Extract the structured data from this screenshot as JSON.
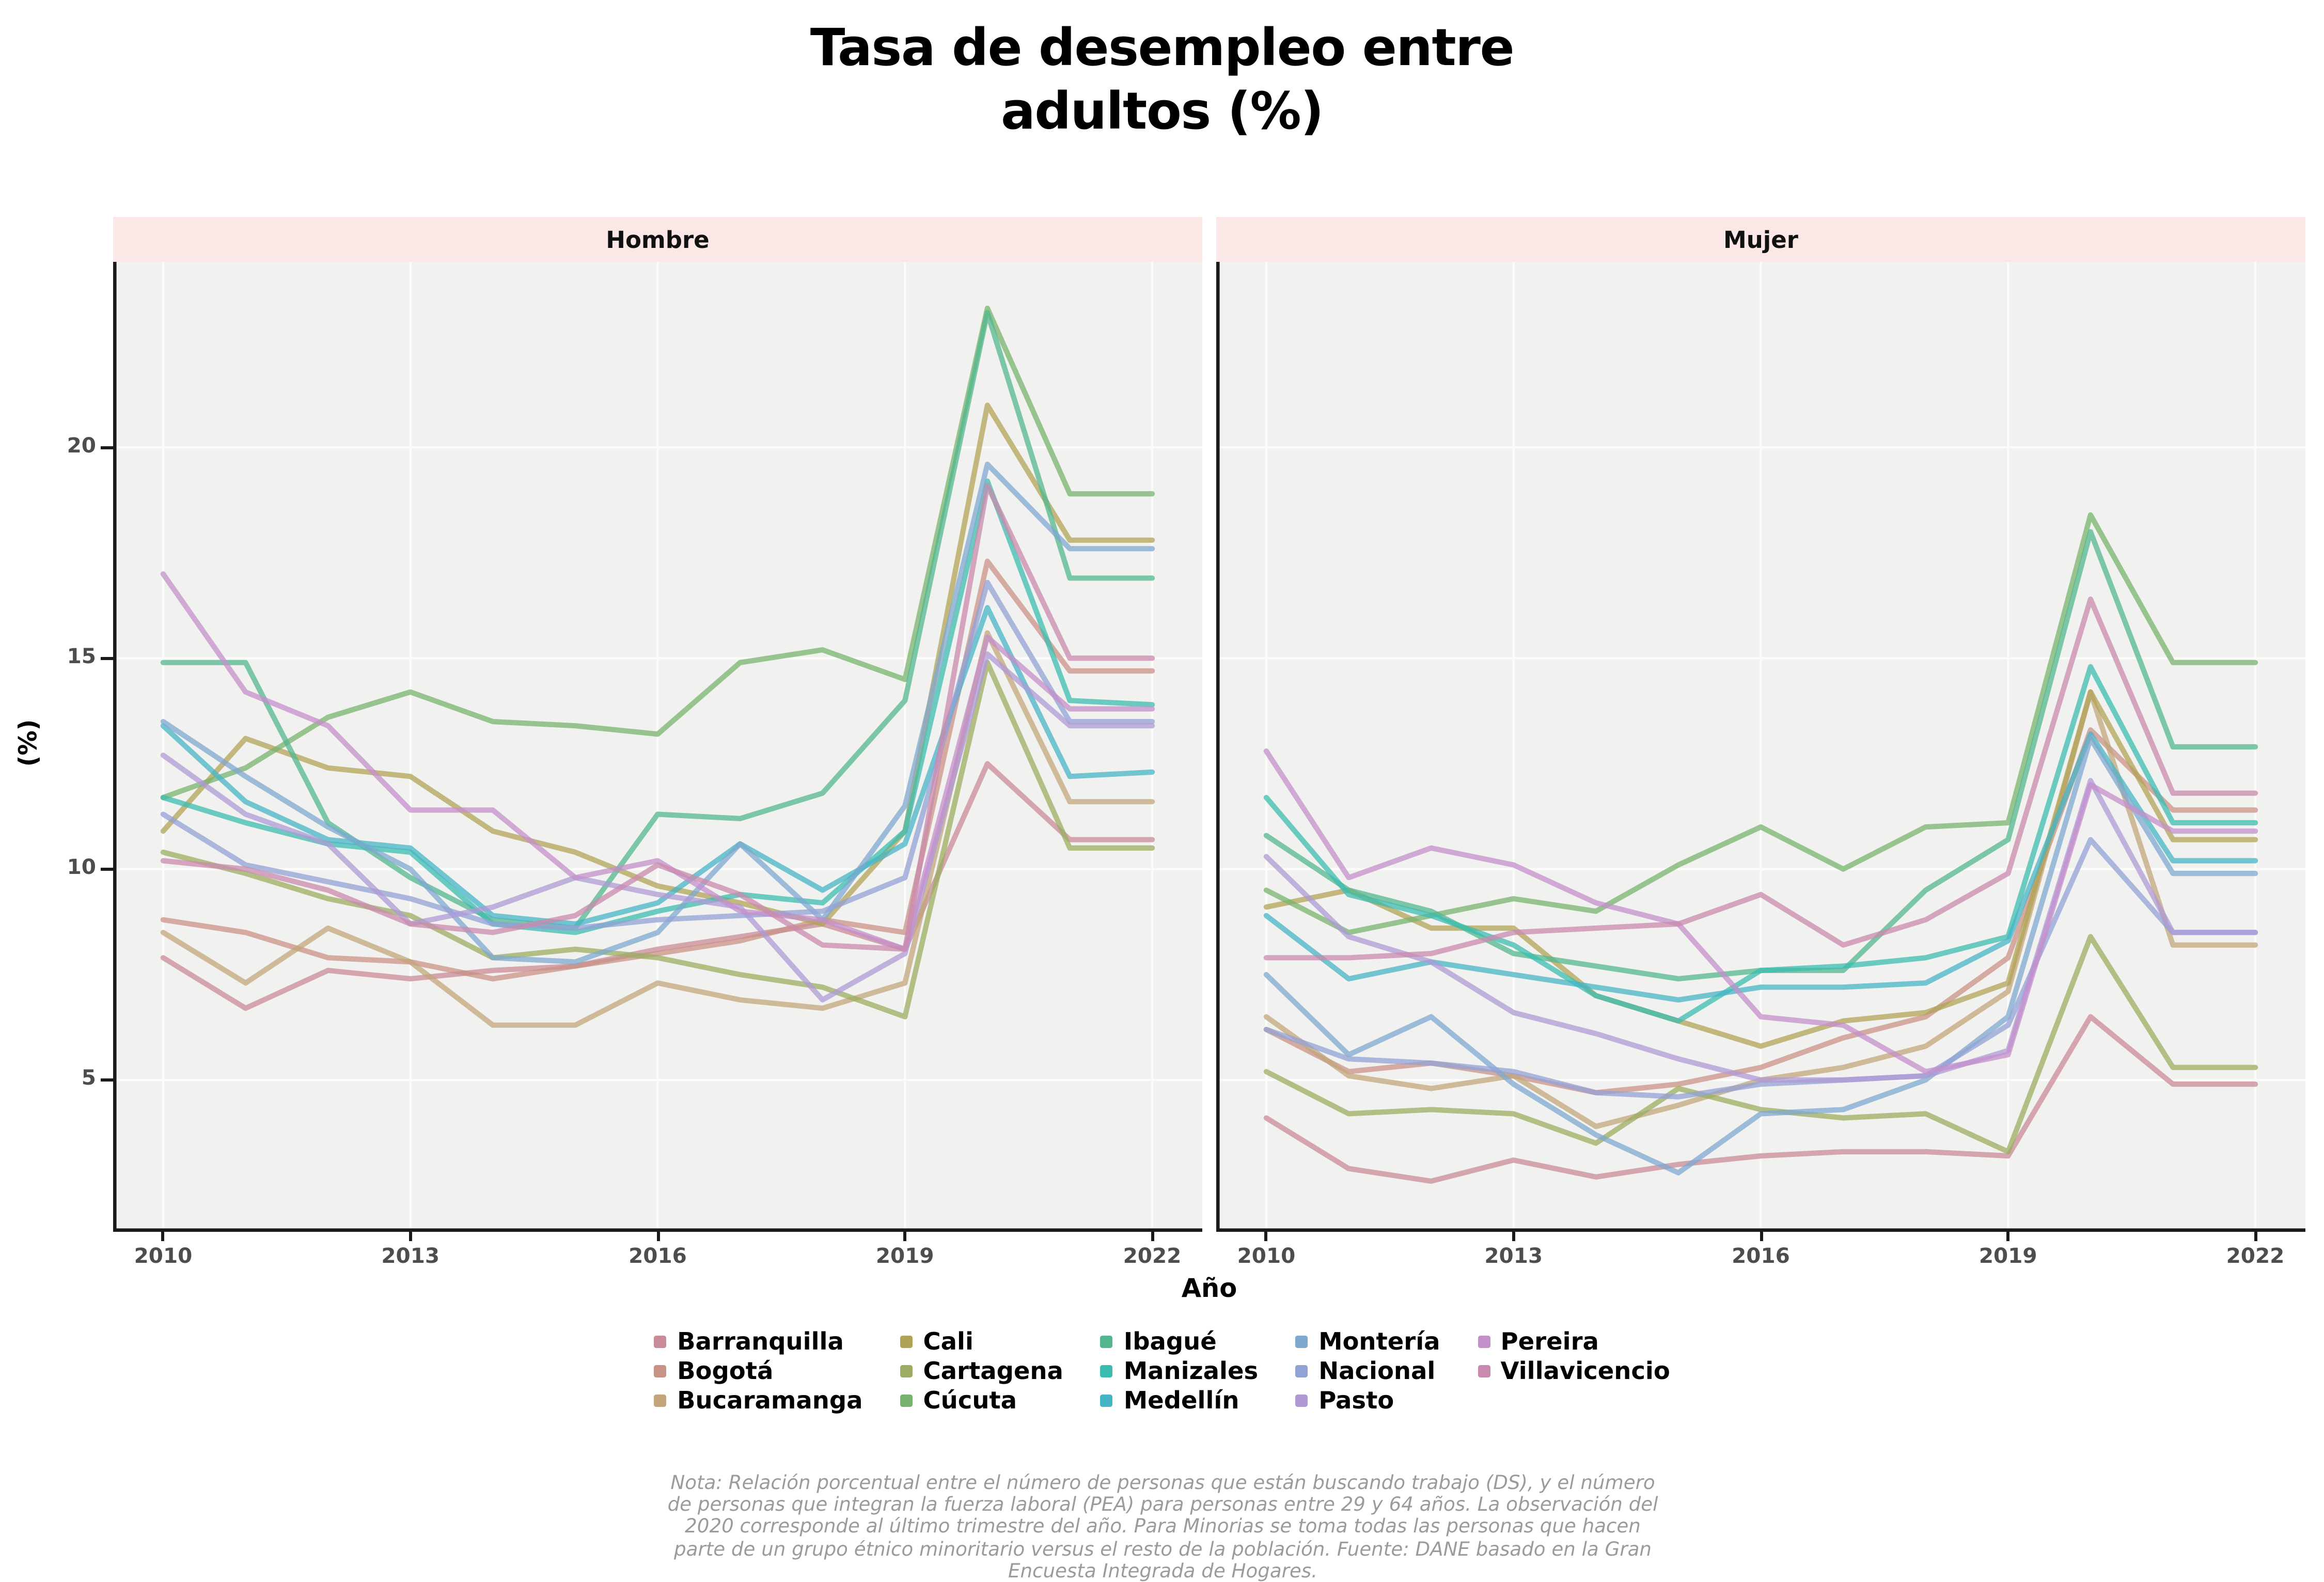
{
  "title": {
    "line1": "Tasa de desempleo entre",
    "line2": "adultos (%)"
  },
  "note": {
    "text": "Nota: Relación porcentual entre el número de personas que están buscando trabajo (DS), y el número de personas que integran la fuerza laboral (PEA) para personas entre 29 y 64 años. La observación del 2020 corresponde al último trimestre del año. Para Minorias se toma todas las personas que hacen parte de un grupo étnico minoritario versus el resto de la población. Fuente: DANE basado en la Gran Encuesta Integrada de Hogares."
  },
  "chart_data": {
    "type": "line",
    "title": "Tasa de desempleo entre adultos (%)",
    "xlabel": "Año",
    "ylabel": "(%)",
    "x": {
      "label": "Año",
      "years": [
        2010,
        2011,
        2012,
        2013,
        2014,
        2015,
        2016,
        2017,
        2018,
        2019,
        2020,
        2021,
        2022
      ],
      "ticks": [
        2010,
        2013,
        2016,
        2019,
        2022
      ]
    },
    "y": {
      "label": "(%)",
      "ticks": [
        5,
        10,
        15,
        20
      ],
      "range": [
        1.4,
        24.4
      ],
      "grid": "major-only"
    },
    "legend": {
      "position": "bottom",
      "columns": [
        [
          "Barranquilla",
          "Bogotá",
          "Bucaramanga"
        ],
        [
          "Cali",
          "Cartagena",
          "Cúcuta"
        ],
        [
          "Ibagué",
          "Manizales",
          "Medellín"
        ],
        [
          "Montería",
          "Nacional",
          "Pasto"
        ],
        [
          "Pereira",
          "Villavicencio"
        ]
      ]
    },
    "palette": {
      "Barranquilla": "#c98b97",
      "Bogotá": "#c99287",
      "Bucaramanga": "#c2a57b",
      "Cali": "#b1a356",
      "Cartagena": "#9bad62",
      "Cúcuta": "#77b36e",
      "Ibagué": "#52b78f",
      "Manizales": "#3cbcb0",
      "Medellín": "#46b4c6",
      "Montería": "#7fa8d0",
      "Nacional": "#93a2d5",
      "Pasto": "#af9ad6",
      "Pereira": "#c48fcb",
      "Villavicencio": "#ca89ae"
    },
    "facets": [
      {
        "label": "Hombre",
        "series": [
          {
            "name": "Barranquilla",
            "values": [
              7.9,
              6.7,
              7.6,
              7.4,
              7.6,
              7.7,
              8.1,
              8.4,
              8.7,
              8.1,
              12.5,
              10.7,
              10.7
            ]
          },
          {
            "name": "Bogotá",
            "values": [
              8.8,
              8.5,
              7.9,
              7.8,
              7.4,
              7.7,
              8.0,
              8.3,
              8.8,
              8.5,
              17.3,
              14.7,
              14.7
            ]
          },
          {
            "name": "Bucaramanga",
            "values": [
              8.5,
              7.3,
              8.6,
              7.8,
              6.3,
              6.3,
              7.3,
              6.9,
              6.7,
              7.3,
              15.6,
              11.6,
              11.6
            ]
          },
          {
            "name": "Cali",
            "values": [
              10.9,
              13.1,
              12.4,
              12.2,
              10.9,
              10.4,
              9.6,
              9.2,
              8.7,
              10.9,
              21.0,
              17.8,
              17.8
            ]
          },
          {
            "name": "Cartagena",
            "values": [
              10.4,
              9.9,
              9.3,
              8.9,
              7.9,
              8.1,
              7.9,
              7.5,
              7.2,
              6.5,
              14.9,
              10.5,
              10.5
            ]
          },
          {
            "name": "Cúcuta",
            "values": [
              11.7,
              12.4,
              13.6,
              14.2,
              13.5,
              13.4,
              13.2,
              14.9,
              15.2,
              14.5,
              23.3,
              18.9,
              18.9
            ]
          },
          {
            "name": "Ibagué",
            "values": [
              14.9,
              14.9,
              11.1,
              9.8,
              8.8,
              8.6,
              11.3,
              11.2,
              11.8,
              14.0,
              23.2,
              16.9,
              16.9
            ]
          },
          {
            "name": "Manizales",
            "values": [
              11.7,
              11.1,
              10.6,
              10.4,
              8.7,
              8.5,
              9.0,
              9.4,
              9.2,
              10.9,
              19.2,
              14.0,
              13.9
            ]
          },
          {
            "name": "Medellín",
            "values": [
              13.4,
              11.6,
              10.7,
              10.5,
              8.9,
              8.7,
              9.2,
              10.6,
              9.5,
              10.6,
              16.2,
              12.2,
              12.3
            ]
          },
          {
            "name": "Montería",
            "values": [
              13.5,
              12.2,
              11.0,
              10.0,
              7.9,
              7.8,
              8.5,
              10.6,
              8.8,
              11.5,
              19.6,
              17.6,
              17.6
            ]
          },
          {
            "name": "Nacional",
            "values": [
              11.3,
              10.1,
              9.7,
              9.3,
              8.7,
              8.6,
              8.8,
              8.9,
              9.0,
              9.8,
              16.8,
              13.5,
              13.5
            ]
          },
          {
            "name": "Pasto",
            "values": [
              12.7,
              11.3,
              10.6,
              8.7,
              9.1,
              9.8,
              9.4,
              9.1,
              6.9,
              8.0,
              15.1,
              13.4,
              13.4
            ]
          },
          {
            "name": "Pereira",
            "values": [
              17.0,
              14.2,
              13.4,
              11.4,
              11.4,
              9.8,
              10.2,
              9.0,
              8.8,
              8.1,
              15.5,
              13.8,
              13.8
            ]
          },
          {
            "name": "Villavicencio",
            "values": [
              10.2,
              10.0,
              9.5,
              8.7,
              8.5,
              8.9,
              10.1,
              9.4,
              8.2,
              8.1,
              19.1,
              15.0,
              15.0
            ]
          }
        ]
      },
      {
        "label": "Mujer",
        "series": [
          {
            "name": "Barranquilla",
            "values": [
              4.1,
              2.9,
              2.6,
              3.1,
              2.7,
              3.0,
              3.2,
              3.3,
              3.3,
              3.2,
              6.5,
              4.9,
              4.9
            ]
          },
          {
            "name": "Bogotá",
            "values": [
              6.2,
              5.2,
              5.4,
              5.1,
              4.7,
              4.9,
              5.3,
              6.0,
              6.5,
              7.9,
              13.3,
              11.4,
              11.4
            ]
          },
          {
            "name": "Bucaramanga",
            "values": [
              6.5,
              5.1,
              4.8,
              5.1,
              3.9,
              4.4,
              5.0,
              5.3,
              5.8,
              7.1,
              14.2,
              8.2,
              8.2
            ]
          },
          {
            "name": "Cali",
            "values": [
              9.1,
              9.5,
              8.6,
              8.6,
              7.0,
              6.4,
              5.8,
              6.4,
              6.6,
              7.3,
              14.2,
              10.7,
              10.7
            ]
          },
          {
            "name": "Cartagena",
            "values": [
              5.2,
              4.2,
              4.3,
              4.2,
              3.5,
              4.8,
              4.3,
              4.1,
              4.2,
              3.3,
              8.4,
              5.3,
              5.3
            ]
          },
          {
            "name": "Cúcuta",
            "values": [
              9.5,
              8.5,
              8.9,
              9.3,
              9.0,
              10.1,
              11.0,
              10.0,
              11.0,
              11.1,
              18.4,
              14.9,
              14.9
            ]
          },
          {
            "name": "Ibagué",
            "values": [
              10.8,
              9.5,
              9.0,
              8.0,
              7.7,
              7.4,
              7.6,
              7.6,
              9.5,
              10.7,
              18.0,
              12.9,
              12.9
            ]
          },
          {
            "name": "Manizales",
            "values": [
              11.7,
              9.4,
              8.9,
              8.2,
              7.0,
              6.4,
              7.6,
              7.7,
              7.9,
              8.4,
              14.8,
              11.1,
              11.1
            ]
          },
          {
            "name": "Medellín",
            "values": [
              8.9,
              7.4,
              7.8,
              7.5,
              7.2,
              6.9,
              7.2,
              7.2,
              7.3,
              8.3,
              13.2,
              10.2,
              10.2
            ]
          },
          {
            "name": "Montería",
            "values": [
              7.5,
              5.6,
              6.5,
              4.9,
              3.7,
              2.8,
              4.2,
              4.3,
              5.0,
              6.5,
              13.1,
              9.9,
              9.9
            ]
          },
          {
            "name": "Nacional",
            "values": [
              6.2,
              5.5,
              5.4,
              5.2,
              4.7,
              4.6,
              4.9,
              5.0,
              5.1,
              6.3,
              10.7,
              8.5,
              8.5
            ]
          },
          {
            "name": "Pasto",
            "values": [
              10.3,
              8.4,
              7.8,
              6.6,
              6.1,
              5.5,
              5.0,
              5.0,
              5.1,
              5.7,
              12.1,
              8.5,
              8.5
            ]
          },
          {
            "name": "Pereira",
            "values": [
              12.8,
              9.8,
              10.5,
              10.1,
              9.2,
              8.7,
              6.5,
              6.3,
              5.2,
              5.6,
              12.0,
              10.9,
              10.9
            ]
          },
          {
            "name": "Villavicencio",
            "values": [
              7.9,
              7.9,
              8.0,
              8.5,
              8.6,
              8.7,
              9.4,
              8.2,
              8.8,
              9.9,
              16.4,
              11.8,
              11.8
            ]
          }
        ]
      }
    ],
    "style": {
      "panel_bg": "#f1f1f0",
      "grid_color": "#fbfbfa",
      "strip_bg": "#fae7e6",
      "axis_color": "#1a1a1a",
      "tick_text_color": "#4d4d4d",
      "note_color": "#9b9b9b",
      "line_width": 3.4,
      "line_opacity": 0.75
    }
  }
}
